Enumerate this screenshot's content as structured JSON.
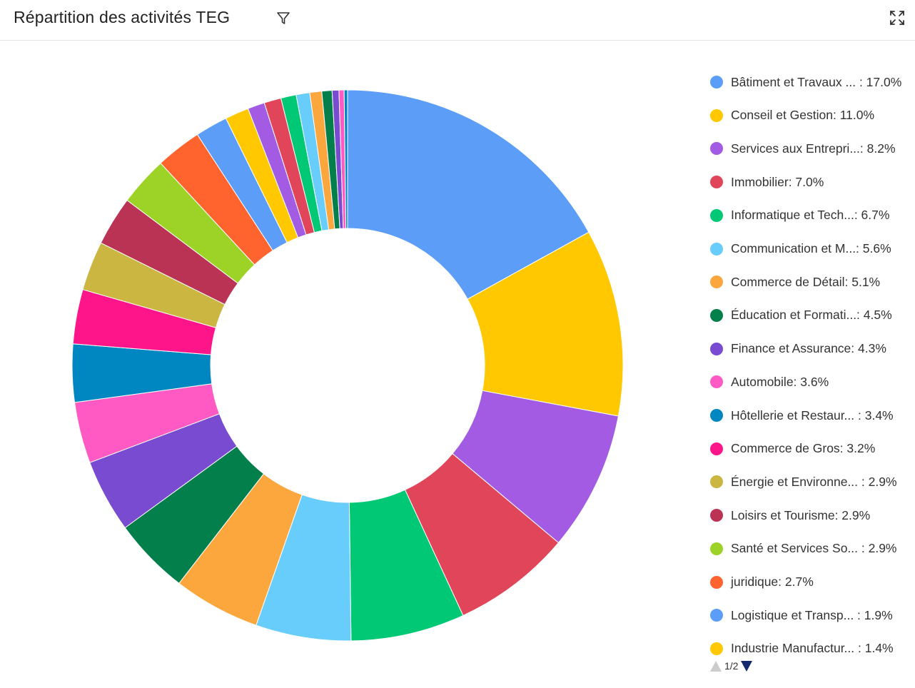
{
  "header": {
    "title": "Répartition des activités TEG",
    "filter_icon": "filter-icon",
    "expand_icon": "expand-icon"
  },
  "chart_data": {
    "type": "pie",
    "variant": "donut",
    "title": "Répartition des activités TEG",
    "legend_position": "right",
    "slices": [
      {
        "label": "Bâtiment et Travaux ...",
        "value": 17.0,
        "color": "#5b9df7",
        "legend_text": "Bâtiment et Travaux ... : 17.0%"
      },
      {
        "label": "Conseil et Gestion",
        "value": 11.0,
        "color": "#ffc800",
        "legend_text": "Conseil et Gestion: 11.0%"
      },
      {
        "label": "Services aux Entrepri...",
        "value": 8.2,
        "color": "#a25be2",
        "legend_text": "Services aux Entrepri...: 8.2%"
      },
      {
        "label": "Immobilier",
        "value": 7.0,
        "color": "#e0455a",
        "legend_text": "Immobilier: 7.0%"
      },
      {
        "label": "Informatique et Tech...",
        "value": 6.7,
        "color": "#00c875",
        "legend_text": "Informatique et Tech...: 6.7%"
      },
      {
        "label": "Communication et M...",
        "value": 5.6,
        "color": "#68cdfa",
        "legend_text": "Communication et M...: 5.6%"
      },
      {
        "label": "Commerce de Détail",
        "value": 5.1,
        "color": "#fba73e",
        "legend_text": "Commerce de Détail: 5.1%"
      },
      {
        "label": "Éducation et Formati...",
        "value": 4.5,
        "color": "#037f4c",
        "legend_text": "Éducation et Formati...: 4.5%"
      },
      {
        "label": "Finance et Assurance",
        "value": 4.3,
        "color": "#784bd1",
        "legend_text": "Finance et Assurance: 4.3%"
      },
      {
        "label": "Automobile",
        "value": 3.6,
        "color": "#ff5ac4",
        "legend_text": "Automobile: 3.6%"
      },
      {
        "label": "Hôtellerie et Restaur...",
        "value": 3.4,
        "color": "#0086c0",
        "legend_text": "Hôtellerie et Restaur... : 3.4%"
      },
      {
        "label": "Commerce de Gros",
        "value": 3.2,
        "color": "#ff158a",
        "legend_text": "Commerce de Gros: 3.2%"
      },
      {
        "label": "Énergie et Environne...",
        "value": 2.9,
        "color": "#cab641",
        "legend_text": "Énergie et Environne... : 2.9%"
      },
      {
        "label": "Loisirs et Tourisme",
        "value": 2.9,
        "color": "#bb3354",
        "legend_text": "Loisirs et Tourisme: 2.9%"
      },
      {
        "label": "Santé et Services So...",
        "value": 2.9,
        "color": "#9cd326",
        "legend_text": "Santé et Services So... : 2.9%"
      },
      {
        "label": "juridique",
        "value": 2.7,
        "color": "#ff642e",
        "legend_text": "juridique: 2.7%"
      },
      {
        "label": "Logistique et Transp...",
        "value": 1.9,
        "color": "#5b9df7",
        "legend_text": "Logistique et Transp... : 1.9%"
      },
      {
        "label": "Industrie Manufactur...",
        "value": 1.4,
        "color": "#ffc800",
        "legend_text": "Industrie Manufactur... : 1.4%"
      },
      {
        "label": "",
        "value": 1.0,
        "color": "#a25be2"
      },
      {
        "label": "",
        "value": 1.0,
        "color": "#e0455a"
      },
      {
        "label": "",
        "value": 0.9,
        "color": "#00c875"
      },
      {
        "label": "",
        "value": 0.8,
        "color": "#68cdfa"
      },
      {
        "label": "",
        "value": 0.7,
        "color": "#fba73e"
      },
      {
        "label": "",
        "value": 0.6,
        "color": "#037f4c"
      },
      {
        "label": "",
        "value": 0.4,
        "color": "#784bd1"
      },
      {
        "label": "",
        "value": 0.3,
        "color": "#ff5ac4"
      },
      {
        "label": "",
        "value": 0.2,
        "color": "#0086c0"
      }
    ]
  },
  "legend": {
    "page_label": "1/2"
  }
}
